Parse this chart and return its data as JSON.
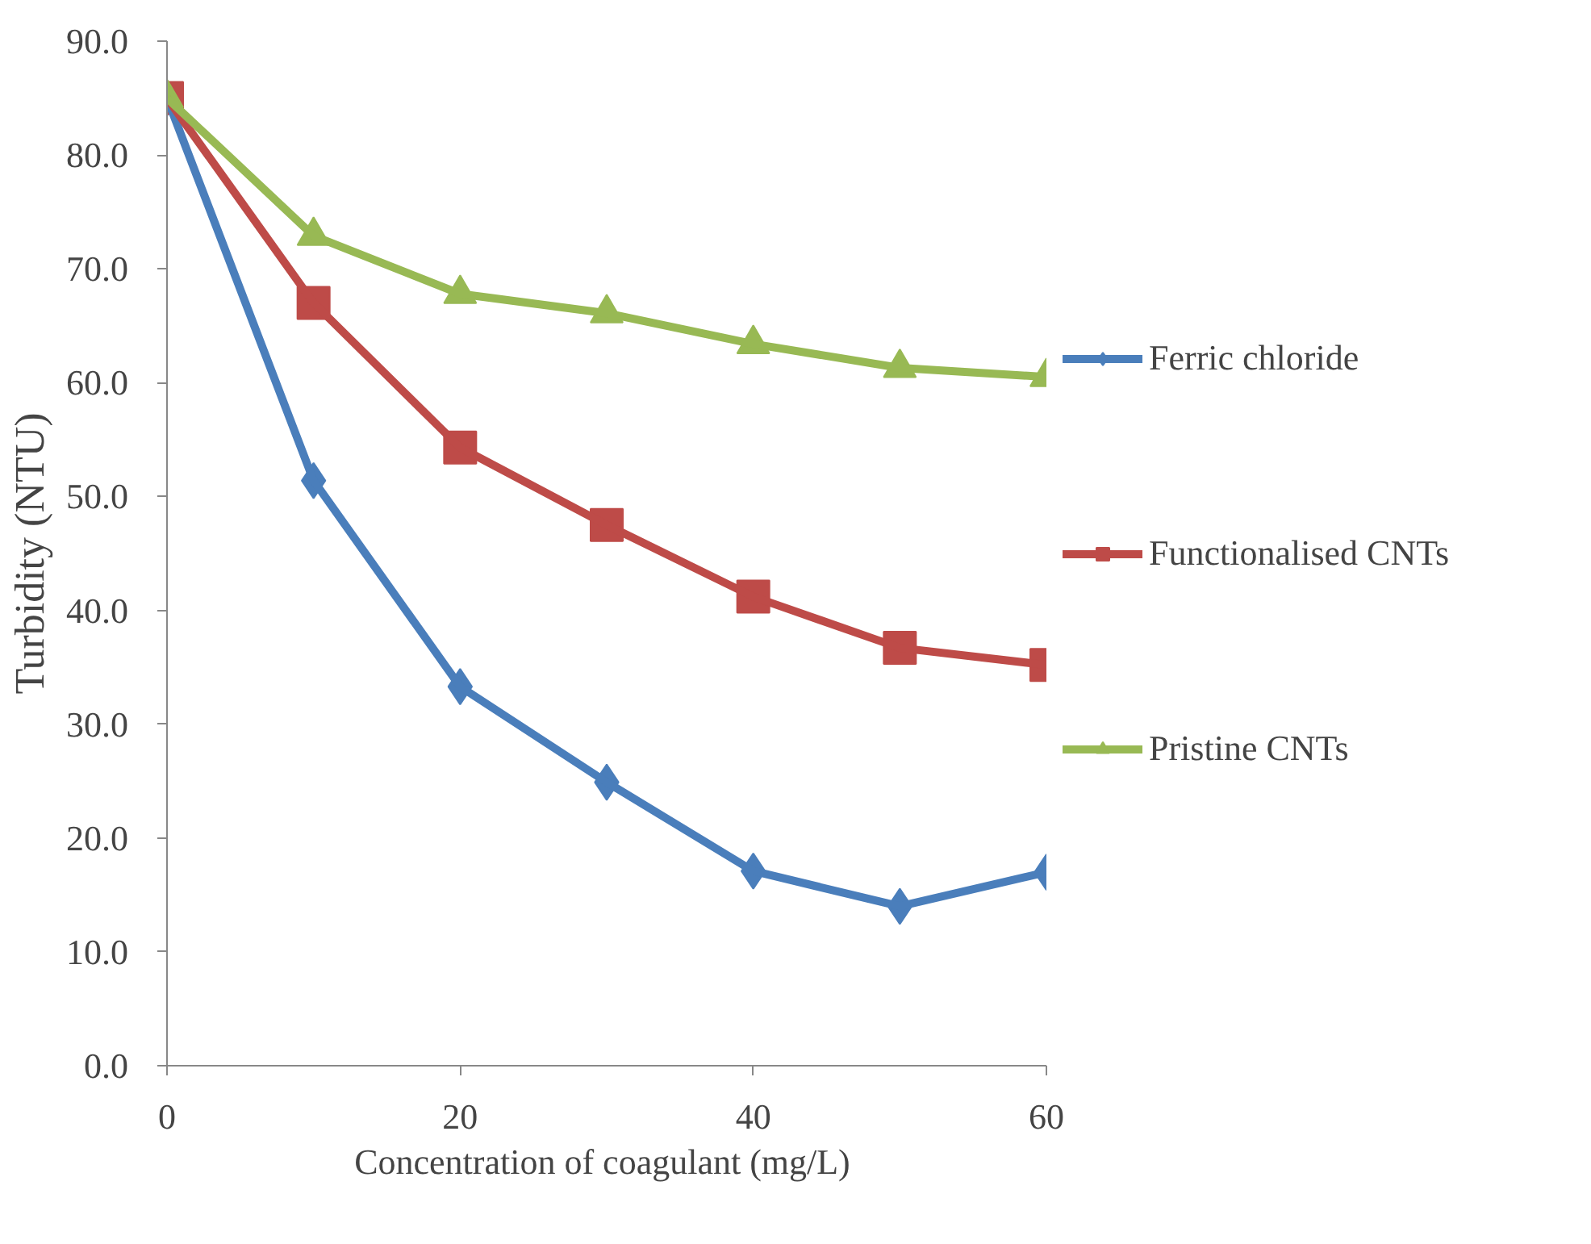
{
  "chart_data": {
    "type": "line",
    "xlabel": "Concentration  of coagulant (mg/L)",
    "ylabel": "Turbidity (NTU)",
    "x": [
      0,
      10,
      20,
      30,
      40,
      50,
      60
    ],
    "xlim": [
      0,
      60
    ],
    "xticks": [
      0,
      20,
      40,
      60
    ],
    "ylim": [
      0,
      90
    ],
    "yticks": [
      {
        "value": 0,
        "label": "0.0"
      },
      {
        "value": 10,
        "label": "10.0"
      },
      {
        "value": 20,
        "label": "20.0"
      },
      {
        "value": 30,
        "label": "30.0"
      },
      {
        "value": 40,
        "label": "40.0"
      },
      {
        "value": 50,
        "label": "50.0"
      },
      {
        "value": 60,
        "label": "60.0"
      },
      {
        "value": 70,
        "label": "70.0"
      },
      {
        "value": 80,
        "label": "80.0"
      },
      {
        "value": 90,
        "label": "90.0"
      }
    ],
    "grid": false,
    "legend": "right",
    "series": [
      {
        "name": "Ferric chloride",
        "color": "#4a7ebb",
        "marker": "diamond",
        "values": [
          85,
          51.4,
          33.3,
          24.9,
          17.1,
          14.0,
          17.0
        ]
      },
      {
        "name": "Functionalised CNTs",
        "color": "#be4b48",
        "marker": "square",
        "values": [
          85,
          67.0,
          54.3,
          47.5,
          41.2,
          36.7,
          35.2
        ]
      },
      {
        "name": "Pristine CNTs",
        "color": "#98b954",
        "marker": "triangle",
        "values": [
          85,
          72.9,
          67.8,
          66.1,
          63.4,
          61.3,
          60.5
        ]
      }
    ]
  }
}
